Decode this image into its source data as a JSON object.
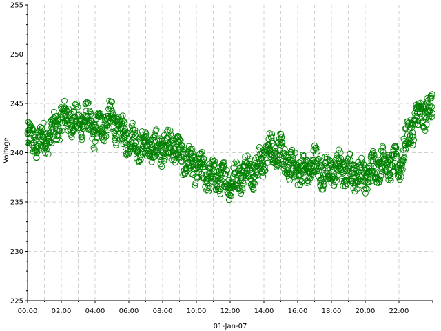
{
  "chart_data": {
    "type": "scatter",
    "title": "",
    "xlabel": "01-Jan-07",
    "ylabel": "Voltage",
    "xlim_hours": [
      0,
      24
    ],
    "ylim": [
      225,
      255
    ],
    "y_ticks": [
      "225",
      "230",
      "235",
      "240",
      "245",
      "250",
      "255"
    ],
    "x_ticks": [
      "00:00",
      "02:00",
      "04:00",
      "06:00",
      "08:00",
      "10:00",
      "12:00",
      "14:00",
      "16:00",
      "18:00",
      "20:00",
      "22:00"
    ],
    "grid": true,
    "marker": "open-circle",
    "marker_color": "#008000",
    "series": [
      {
        "x_hours": [
          0.0,
          0.5,
          1.0,
          1.5,
          2.0,
          2.5,
          3.0,
          3.5,
          4.0,
          4.5,
          5.0,
          5.5,
          6.0,
          6.5,
          7.0,
          7.5,
          8.0,
          8.5,
          9.0,
          9.5,
          10.0,
          10.5,
          11.0,
          11.5,
          12.0,
          12.5,
          13.0,
          13.5,
          14.0,
          14.5,
          15.0,
          15.5,
          16.0,
          16.5,
          17.0,
          17.5,
          18.0,
          18.5,
          19.0,
          19.5,
          20.0,
          20.5,
          21.0,
          21.5,
          22.0,
          22.5,
          23.0,
          23.5,
          24.0
        ],
        "values": [
          241.5,
          241.0,
          241.5,
          242.0,
          243.5,
          243.5,
          243.0,
          243.5,
          242.0,
          243.0,
          243.5,
          242.0,
          241.5,
          241.0,
          240.5,
          240.5,
          240.5,
          241.0,
          240.0,
          239.0,
          238.5,
          238.0,
          237.5,
          237.5,
          237.0,
          237.5,
          238.5,
          238.0,
          239.5,
          240.5,
          240.0,
          238.5,
          238.5,
          238.0,
          239.0,
          238.0,
          238.0,
          238.5,
          238.0,
          238.0,
          237.5,
          238.5,
          239.0,
          239.0,
          238.5,
          241.5,
          243.5,
          244.0,
          244.5
        ]
      }
    ]
  }
}
